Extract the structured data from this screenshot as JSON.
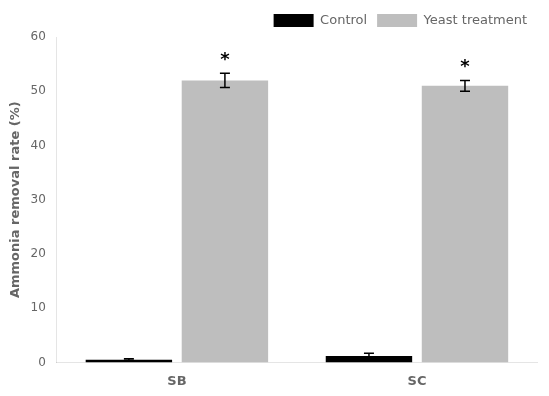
{
  "chart_data": {
    "type": "bar",
    "categories": [
      "SB",
      "SC"
    ],
    "series": [
      {
        "name": "Control",
        "color": "#000000",
        "values": [
          0.5,
          1.2
        ],
        "errors": [
          0.15,
          0.5
        ]
      },
      {
        "name": "Yeast treatment",
        "color": "#bebebe",
        "values": [
          52.0,
          51.0
        ],
        "errors": [
          1.3,
          1.0
        ]
      }
    ],
    "ylabel": "Ammonia removal rate (%)",
    "ylim": [
      0,
      60
    ],
    "yticks": [
      0,
      10,
      20,
      30,
      40,
      50,
      60
    ],
    "grid": false,
    "legend": "upper right",
    "annotations": [
      {
        "text": "*",
        "series": "Yeast treatment",
        "category": "SB"
      },
      {
        "text": "*",
        "series": "Yeast treatment",
        "category": "SC"
      }
    ]
  }
}
